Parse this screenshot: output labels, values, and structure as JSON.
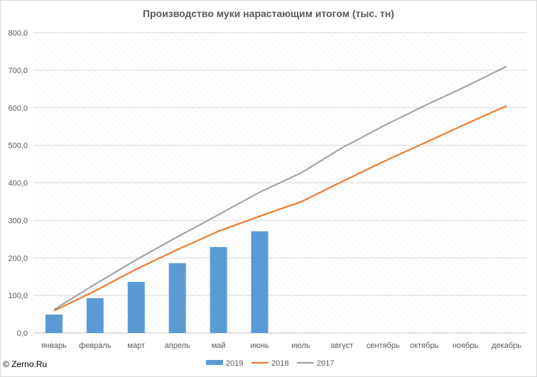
{
  "chart_data": {
    "type": "bar+line",
    "title": "Производство муки нарастающим итогом (тыс. тн)",
    "categories": [
      "январь",
      "февраль",
      "март",
      "апрель",
      "май",
      "июнь",
      "июль",
      "август",
      "сентябрь",
      "октябрь",
      "ноябрь",
      "декабрь"
    ],
    "ylim": [
      0,
      800
    ],
    "yticks": [
      "0,0",
      "100,0",
      "200,0",
      "300,0",
      "400,0",
      "500,0",
      "600,0",
      "700,0",
      "800,0"
    ],
    "grid": "diagonal hatch background",
    "legend_position": "bottom",
    "series": [
      {
        "name": "2019",
        "kind": "bar",
        "color": "#5b9bd5",
        "values": [
          49,
          93,
          136,
          186,
          229,
          271,
          null,
          null,
          null,
          null,
          null,
          null
        ]
      },
      {
        "name": "2018",
        "kind": "line",
        "color": "#ed7d31",
        "values": [
          59,
          112,
          170,
          222,
          271,
          311,
          349,
          403,
          456,
          506,
          556,
          605
        ]
      },
      {
        "name": "2017",
        "kind": "line",
        "color": "#a5a5a5",
        "values": [
          62,
          130,
          195,
          256,
          315,
          375,
          426,
          493,
          551,
          605,
          656,
          710
        ]
      }
    ]
  },
  "footer": {
    "copyright": "© Zerno.Ru"
  }
}
